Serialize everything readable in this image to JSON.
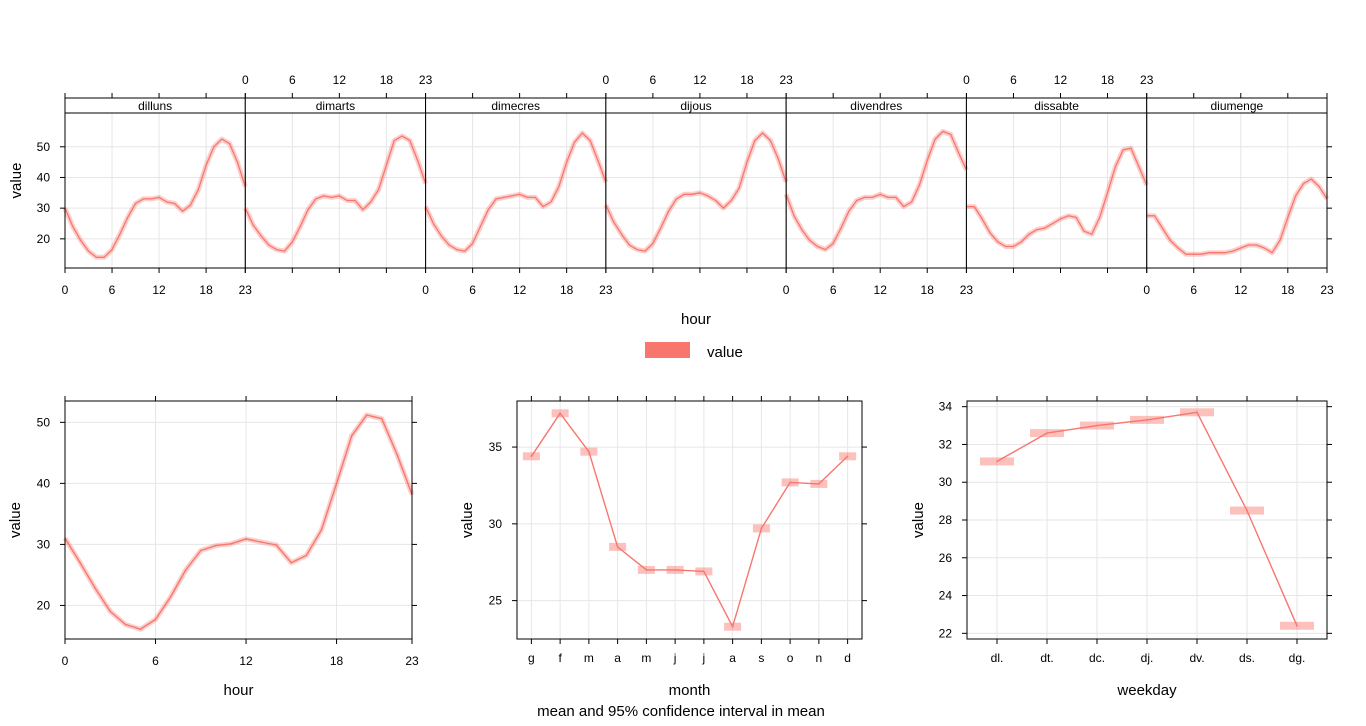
{
  "colors": {
    "line": "#F8766D",
    "ci": "#F8766D",
    "grid": "#e6e6e6",
    "strip_bg": "#ffffff"
  },
  "legend": {
    "label": "value"
  },
  "caption": "mean and 95% confidence interval in mean",
  "chart_data": [
    {
      "id": "hour_by_weekday",
      "type": "line",
      "xlabel": "hour",
      "ylabel": "value",
      "xlim": [
        0,
        23
      ],
      "ylim": [
        10.5,
        61
      ],
      "x_ticks": [
        0,
        6,
        12,
        18,
        23
      ],
      "y_ticks": [
        20,
        30,
        40,
        50
      ],
      "panels": [
        {
          "strip": "dilluns",
          "values": [
            30,
            24,
            19.5,
            16,
            14,
            14,
            16.5,
            21.5,
            27,
            31.5,
            33,
            33,
            33.5,
            32,
            31.5,
            29,
            31,
            36,
            44,
            50,
            52.5,
            51,
            45,
            37
          ]
        },
        {
          "strip": "dimarts",
          "values": [
            30,
            24.5,
            21,
            18,
            16.5,
            16,
            19,
            24,
            29.5,
            33,
            34,
            33.5,
            34,
            32.5,
            32.5,
            29.5,
            32,
            36,
            44,
            52,
            53.5,
            52,
            45.5,
            38
          ]
        },
        {
          "strip": "dimecres",
          "values": [
            30.5,
            25,
            21,
            18,
            16.5,
            16,
            18.5,
            24,
            29.5,
            33,
            33.5,
            34,
            34.5,
            33.5,
            33.5,
            30.5,
            32,
            37,
            45,
            51.5,
            54.5,
            52,
            45.5,
            38.5
          ]
        },
        {
          "strip": "dijous",
          "values": [
            31,
            25.5,
            21.5,
            18,
            16.5,
            16,
            18.5,
            23.5,
            29,
            33,
            34.5,
            34.5,
            35,
            34,
            32.5,
            30,
            32.5,
            36.5,
            45,
            52,
            54.5,
            52,
            46,
            38.5
          ]
        },
        {
          "strip": "divendres",
          "values": [
            34.5,
            27.5,
            23,
            19.5,
            17.5,
            16.5,
            18.5,
            23.5,
            29,
            32.5,
            33.5,
            33.5,
            34.5,
            33.5,
            33.5,
            30.5,
            32,
            37.5,
            45.5,
            52.5,
            55,
            54,
            48,
            42.5
          ]
        },
        {
          "strip": "dissabte",
          "values": [
            30.5,
            30.5,
            26.5,
            22,
            19,
            17.5,
            17.5,
            19,
            21.5,
            23,
            23.5,
            25,
            26.5,
            27.5,
            27,
            22.5,
            21.5,
            27,
            35,
            43.5,
            49,
            49.5,
            43.5,
            37.5
          ]
        },
        {
          "strip": "diumenge",
          "values": [
            27.5,
            27.5,
            23.5,
            19.5,
            17,
            15,
            15,
            15,
            15.5,
            15.5,
            15.5,
            16,
            17,
            18,
            18,
            17,
            15.5,
            19.5,
            27,
            34,
            38,
            39.5,
            37,
            33
          ]
        }
      ]
    },
    {
      "id": "hour",
      "type": "line",
      "xlabel": "hour",
      "ylabel": "value",
      "xlim": [
        0,
        23
      ],
      "ylim": [
        14.5,
        53.5
      ],
      "x_ticks": [
        0,
        6,
        12,
        18,
        23
      ],
      "y_ticks": [
        20,
        30,
        40,
        50
      ],
      "x": [
        0,
        1,
        2,
        3,
        4,
        5,
        6,
        7,
        8,
        9,
        10,
        11,
        12,
        13,
        14,
        15,
        16,
        17,
        18,
        19,
        20,
        21,
        22,
        23
      ],
      "values": [
        31,
        27,
        22.8,
        19,
        16.9,
        16.1,
        17.7,
        21.4,
        25.8,
        29,
        29.8,
        30.1,
        30.9,
        30.4,
        29.9,
        27,
        28.2,
        32.4,
        40,
        47.8,
        51.2,
        50.6,
        44.8,
        38.2
      ]
    },
    {
      "id": "month",
      "type": "line",
      "xlabel": "month",
      "ylabel": "value",
      "ylim": [
        22.5,
        38
      ],
      "y_ticks": [
        25,
        30,
        35
      ],
      "categories": [
        "g",
        "f",
        "m",
        "a",
        "m",
        "j",
        "j",
        "a",
        "s",
        "o",
        "n",
        "d"
      ],
      "values": [
        34.4,
        37.2,
        34.7,
        28.5,
        27,
        27,
        26.9,
        23.3,
        29.7,
        32.7,
        32.6,
        34.4
      ]
    },
    {
      "id": "weekday",
      "type": "line",
      "xlabel": "weekday",
      "ylabel": "value",
      "ylim": [
        21.7,
        34.3
      ],
      "y_ticks": [
        22,
        24,
        26,
        28,
        30,
        32,
        34
      ],
      "categories": [
        "dl.",
        "dt.",
        "dc.",
        "dj.",
        "dv.",
        "ds.",
        "dg."
      ],
      "values": [
        31.1,
        32.6,
        33,
        33.3,
        33.7,
        28.5,
        22.4
      ]
    }
  ]
}
